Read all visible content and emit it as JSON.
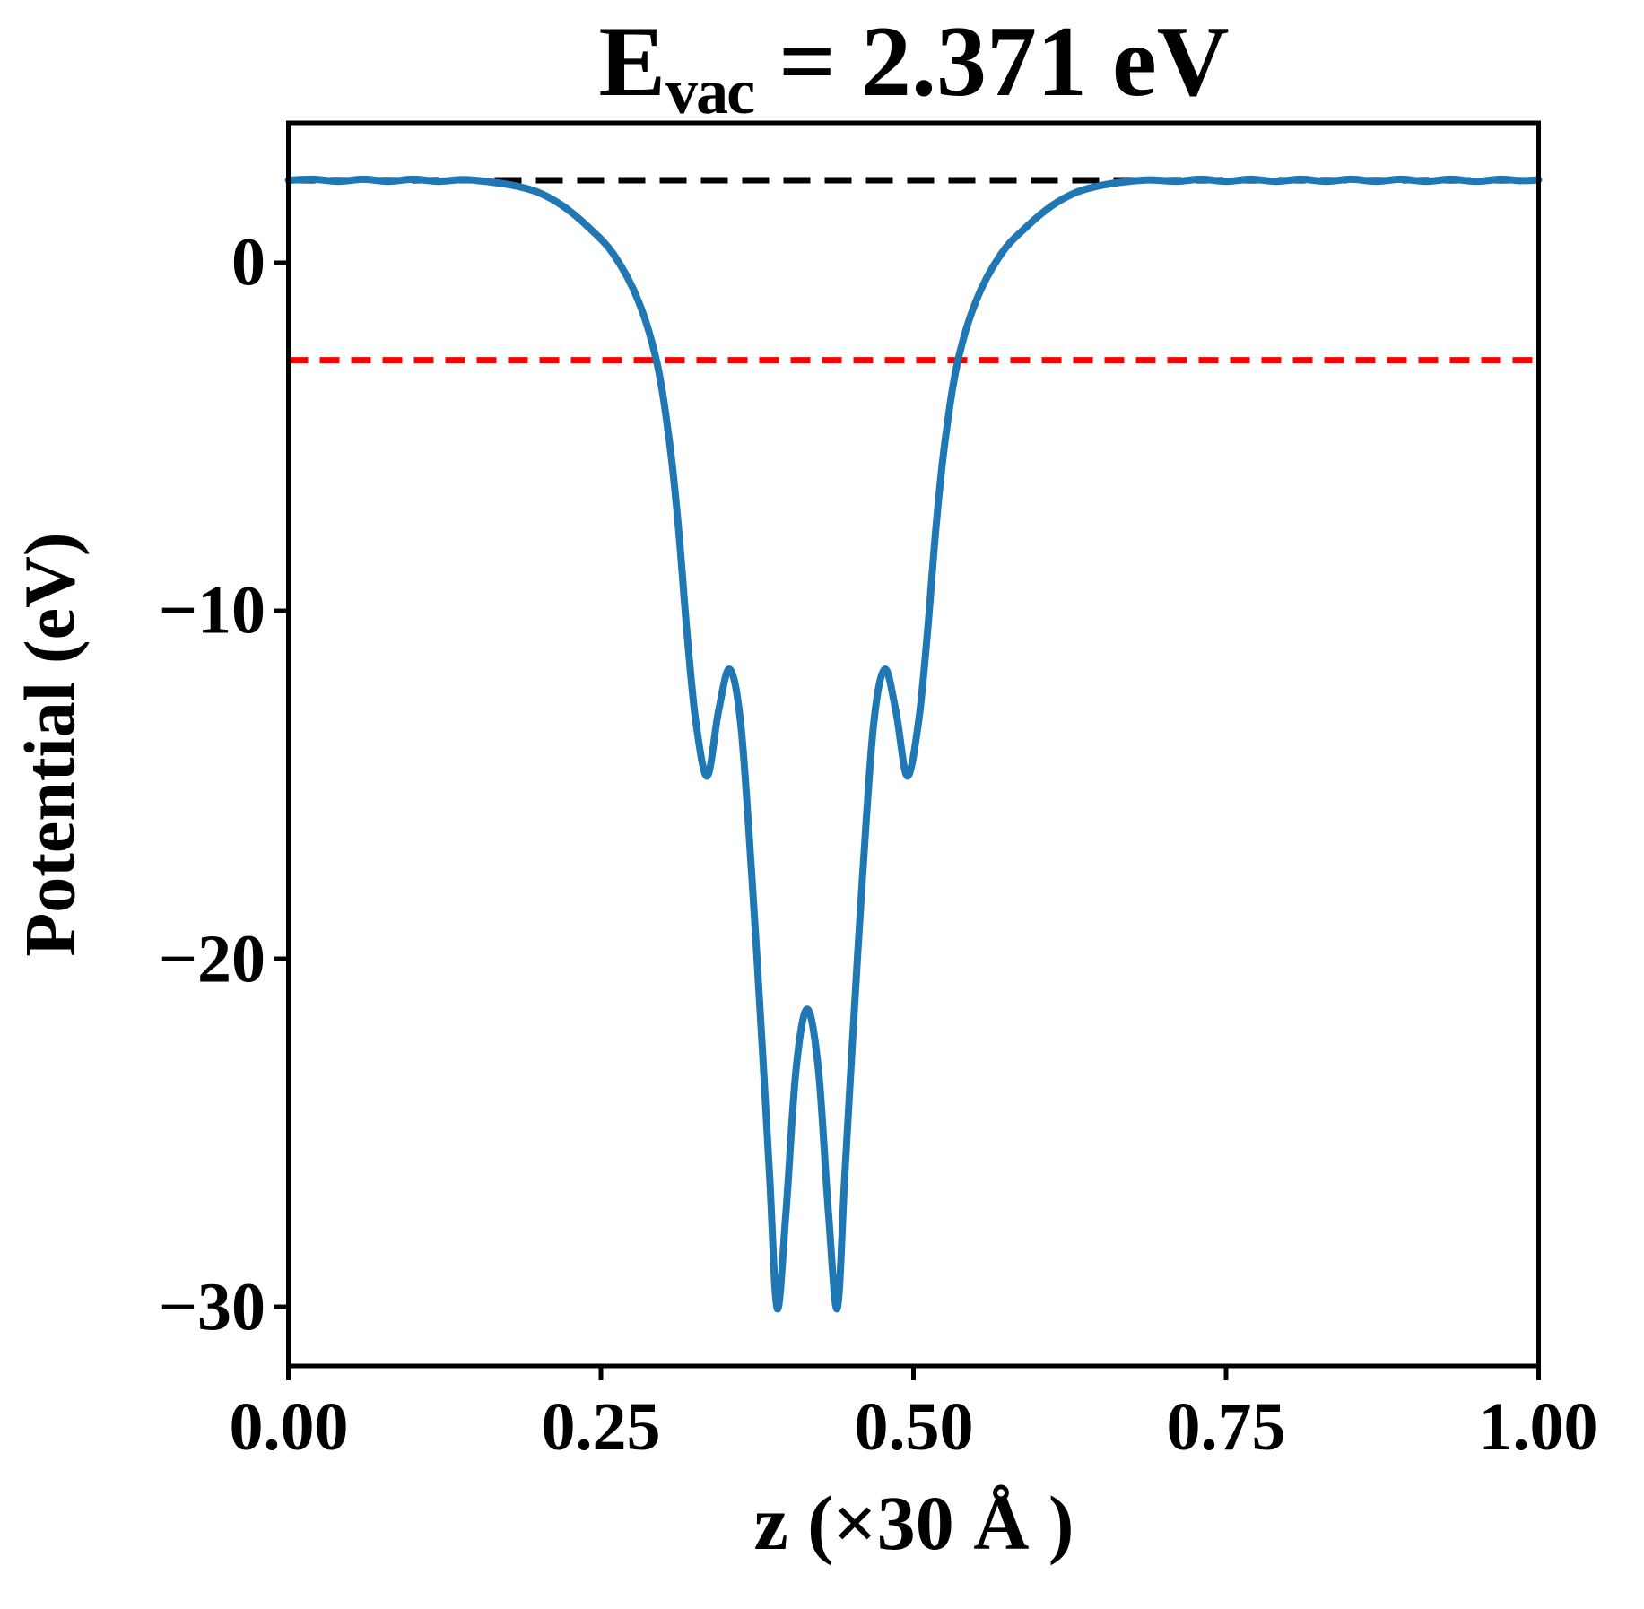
{
  "figure": {
    "background": "#ffffff",
    "title": {
      "prefix": "E",
      "subscript": "vac",
      "suffix": " = 2.371 eV"
    },
    "xlabel": "z (×30 Å )",
    "ylabel": "Potential (eV)"
  },
  "chart_data": {
    "type": "line",
    "title": "E_vac = 2.371 eV",
    "xlabel": "z (×30 Å )",
    "ylabel": "Potential (eV)",
    "xlim": [
      0,
      1
    ],
    "ylim": [
      -31.7,
      4.02
    ],
    "grid": false,
    "legend": "none",
    "xticks": [
      {
        "value": 0.0,
        "label": "0.00"
      },
      {
        "value": 0.25,
        "label": "0.25"
      },
      {
        "value": 0.5,
        "label": "0.50"
      },
      {
        "value": 0.75,
        "label": "0.75"
      },
      {
        "value": 1.0,
        "label": "1.00"
      }
    ],
    "yticks": [
      {
        "value": 0,
        "label": "0"
      },
      {
        "value": -10,
        "label": "−10"
      },
      {
        "value": -20,
        "label": "−20"
      },
      {
        "value": -30,
        "label": "−30"
      }
    ],
    "hlines": [
      {
        "name": "vacuum-level-line",
        "y": 2.371,
        "color": "#000000",
        "style": "dashed",
        "dash": [
          30,
          16
        ],
        "width": 7,
        "x_start": 0,
        "x_end": 1
      },
      {
        "name": "fermi-level-line",
        "y": -2.8,
        "color": "#ff0000",
        "style": "dashed",
        "dash": [
          22,
          13
        ],
        "width": 7,
        "x_start": 0,
        "x_end": 1
      }
    ],
    "series": [
      {
        "name": "planar-averaged-potential",
        "color": "#1f77b4",
        "width": 8,
        "points": [
          [
            0.0,
            2.37
          ],
          [
            0.02,
            2.4
          ],
          [
            0.04,
            2.34
          ],
          [
            0.06,
            2.4
          ],
          [
            0.08,
            2.34
          ],
          [
            0.1,
            2.4
          ],
          [
            0.12,
            2.34
          ],
          [
            0.14,
            2.39
          ],
          [
            0.16,
            2.33
          ],
          [
            0.18,
            2.22
          ],
          [
            0.2,
            2.02
          ],
          [
            0.22,
            1.62
          ],
          [
            0.24,
            1.02
          ],
          [
            0.26,
            0.25
          ],
          [
            0.28,
            -1.1
          ],
          [
            0.295,
            -2.9
          ],
          [
            0.305,
            -5.2
          ],
          [
            0.312,
            -7.6
          ],
          [
            0.319,
            -10.7
          ],
          [
            0.326,
            -13.2
          ],
          [
            0.335,
            -14.75
          ],
          [
            0.344,
            -12.9
          ],
          [
            0.353,
            -11.68
          ],
          [
            0.362,
            -13.3
          ],
          [
            0.371,
            -17.8
          ],
          [
            0.379,
            -22.5
          ],
          [
            0.385,
            -26.3
          ],
          [
            0.391,
            -30.05
          ],
          [
            0.398,
            -27.3
          ],
          [
            0.406,
            -23.2
          ],
          [
            0.415,
            -21.45
          ],
          [
            0.424,
            -23.2
          ],
          [
            0.432,
            -27.3
          ],
          [
            0.439,
            -30.05
          ],
          [
            0.445,
            -26.3
          ],
          [
            0.451,
            -22.5
          ],
          [
            0.459,
            -17.8
          ],
          [
            0.468,
            -13.3
          ],
          [
            0.477,
            -11.68
          ],
          [
            0.486,
            -12.9
          ],
          [
            0.495,
            -14.75
          ],
          [
            0.504,
            -13.2
          ],
          [
            0.511,
            -10.7
          ],
          [
            0.518,
            -7.6
          ],
          [
            0.525,
            -5.2
          ],
          [
            0.535,
            -2.9
          ],
          [
            0.55,
            -1.1
          ],
          [
            0.57,
            0.25
          ],
          [
            0.59,
            1.02
          ],
          [
            0.61,
            1.62
          ],
          [
            0.63,
            2.02
          ],
          [
            0.65,
            2.22
          ],
          [
            0.67,
            2.33
          ],
          [
            0.69,
            2.38
          ],
          [
            0.71,
            2.34
          ],
          [
            0.73,
            2.4
          ],
          [
            0.75,
            2.34
          ],
          [
            0.77,
            2.4
          ],
          [
            0.79,
            2.34
          ],
          [
            0.81,
            2.4
          ],
          [
            0.83,
            2.34
          ],
          [
            0.85,
            2.4
          ],
          [
            0.87,
            2.34
          ],
          [
            0.89,
            2.4
          ],
          [
            0.91,
            2.34
          ],
          [
            0.93,
            2.4
          ],
          [
            0.95,
            2.34
          ],
          [
            0.97,
            2.4
          ],
          [
            0.985,
            2.36
          ],
          [
            1.0,
            2.38
          ]
        ]
      }
    ],
    "axis_style": {
      "spine_color": "#000000",
      "spine_width": 5,
      "tick_length": 16,
      "tick_width": 5,
      "tick_direction": "out"
    }
  }
}
